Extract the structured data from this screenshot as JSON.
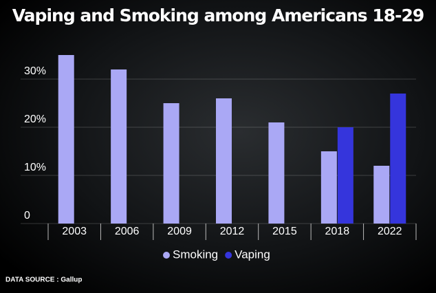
{
  "chart_data": {
    "type": "bar",
    "title": "Vaping and Smoking among Americans 18-29",
    "categories": [
      "2003",
      "2006",
      "2009",
      "2012",
      "2015",
      "2018",
      "2022"
    ],
    "series": [
      {
        "name": "Smoking",
        "color": "#aaa8f5",
        "values": [
          35,
          32,
          25,
          26,
          21,
          15,
          12
        ]
      },
      {
        "name": "Vaping",
        "color": "#3535dc",
        "values": [
          null,
          null,
          null,
          null,
          null,
          20,
          27
        ]
      }
    ],
    "ylim": [
      0,
      38
    ],
    "yticks": [
      0,
      {
        "value": 10,
        "label": "10%"
      },
      {
        "value": 20,
        "label": "20%"
      },
      {
        "value": 30,
        "label": "30%"
      }
    ],
    "grid": true,
    "legend": "bottom",
    "source": "DATA SOURCE : Gallup"
  }
}
